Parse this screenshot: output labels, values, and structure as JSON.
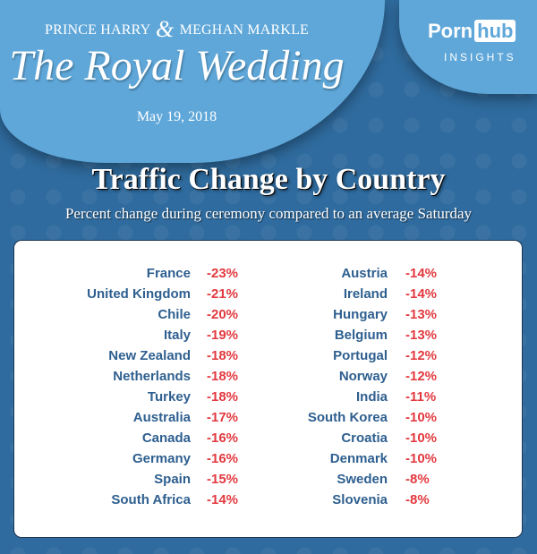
{
  "header": {
    "couple_left": "PRINCE HARRY",
    "ampersand": "&",
    "couple_right": "MEGHAN MARKLE",
    "event_title": "The Royal Wedding",
    "date": "May 19, 2018"
  },
  "logo": {
    "part1": "Porn",
    "part2": "hub",
    "tagline": "INSIGHTS"
  },
  "colors": {
    "background": "#2f6b9e",
    "oval": "#5fa7d9",
    "country_text": "#2e5f8f",
    "value_text": "#e2393f"
  },
  "chart_data": {
    "type": "table",
    "title": "Traffic Change by Country",
    "subtitle": "Percent change during ceremony compared to an average Saturday",
    "rows": [
      {
        "country": "France",
        "change": "-23%"
      },
      {
        "country": "United Kingdom",
        "change": "-21%"
      },
      {
        "country": "Chile",
        "change": "-20%"
      },
      {
        "country": "Italy",
        "change": "-19%"
      },
      {
        "country": "New Zealand",
        "change": "-18%"
      },
      {
        "country": "Netherlands",
        "change": "-18%"
      },
      {
        "country": "Turkey",
        "change": "-18%"
      },
      {
        "country": "Australia",
        "change": "-17%"
      },
      {
        "country": "Canada",
        "change": "-16%"
      },
      {
        "country": "Germany",
        "change": "-16%"
      },
      {
        "country": "Spain",
        "change": "-15%"
      },
      {
        "country": "South Africa",
        "change": "-14%"
      },
      {
        "country": "Austria",
        "change": "-14%"
      },
      {
        "country": "Ireland",
        "change": "-14%"
      },
      {
        "country": "Hungary",
        "change": "-13%"
      },
      {
        "country": "Belgium",
        "change": "-13%"
      },
      {
        "country": "Portugal",
        "change": "-12%"
      },
      {
        "country": "Norway",
        "change": "-12%"
      },
      {
        "country": "India",
        "change": "-11%"
      },
      {
        "country": "South Korea",
        "change": "-10%"
      },
      {
        "country": "Croatia",
        "change": "-10%"
      },
      {
        "country": "Denmark",
        "change": "-10%"
      },
      {
        "country": "Sweden",
        "change": "-8%"
      },
      {
        "country": "Slovenia",
        "change": "-8%"
      }
    ]
  }
}
